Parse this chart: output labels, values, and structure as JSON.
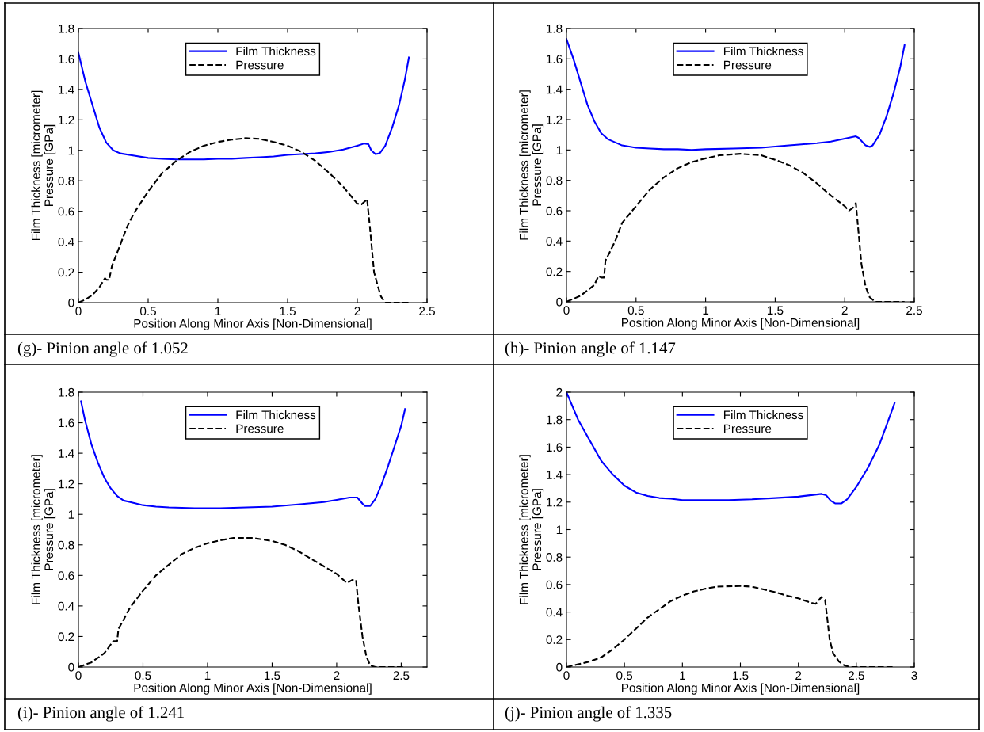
{
  "chart_data": [
    {
      "type": "line",
      "xlabel": "Position Along Minor Axis [Non-Dimensional]",
      "ylabel": "Film Thickness [micrometer]\nPressure [GPa]",
      "xlim": [
        0,
        2.5
      ],
      "ylim": [
        0,
        1.8
      ],
      "xticks": [
        0,
        0.5,
        1,
        1.5,
        2,
        2.5
      ],
      "yticks": [
        0,
        0.2,
        0.4,
        0.6,
        0.8,
        1,
        1.2,
        1.4,
        1.6,
        1.8
      ],
      "legend": "top",
      "annotations": [
        "(g)- Pinion angle of 1.052"
      ],
      "series": [
        {
          "name": "Film Thickness",
          "color": "#0000ff",
          "line_style": "solid",
          "x": [
            0,
            0.05,
            0.1,
            0.15,
            0.2,
            0.25,
            0.3,
            0.4,
            0.5,
            0.6,
            0.7,
            0.8,
            0.9,
            1.0,
            1.1,
            1.2,
            1.3,
            1.4,
            1.5,
            1.6,
            1.7,
            1.8,
            1.9,
            2.0,
            2.05,
            2.08,
            2.1,
            2.13,
            2.16,
            2.2,
            2.25,
            2.3,
            2.34,
            2.37
          ],
          "values": [
            1.64,
            1.45,
            1.3,
            1.15,
            1.05,
            1.0,
            0.98,
            0.965,
            0.95,
            0.945,
            0.94,
            0.94,
            0.94,
            0.945,
            0.945,
            0.95,
            0.955,
            0.96,
            0.97,
            0.975,
            0.98,
            0.99,
            1.005,
            1.03,
            1.045,
            1.04,
            1.0,
            0.975,
            0.98,
            1.03,
            1.15,
            1.3,
            1.46,
            1.61
          ]
        },
        {
          "name": "Pressure",
          "color": "#000000",
          "line_style": "dashed",
          "x": [
            0,
            0.05,
            0.1,
            0.15,
            0.19,
            0.2,
            0.22,
            0.24,
            0.3,
            0.35,
            0.4,
            0.5,
            0.6,
            0.7,
            0.8,
            0.9,
            1.0,
            1.1,
            1.2,
            1.3,
            1.4,
            1.5,
            1.6,
            1.7,
            1.8,
            1.9,
            2.0,
            2.03,
            2.06,
            2.07,
            2.09,
            2.1,
            2.12,
            2.15,
            2.17,
            2.2,
            2.37
          ],
          "values": [
            0,
            0.02,
            0.05,
            0.1,
            0.16,
            0.15,
            0.15,
            0.24,
            0.38,
            0.5,
            0.59,
            0.73,
            0.85,
            0.93,
            0.99,
            1.03,
            1.055,
            1.07,
            1.08,
            1.075,
            1.055,
            1.03,
            0.99,
            0.93,
            0.85,
            0.76,
            0.65,
            0.645,
            0.67,
            0.68,
            0.5,
            0.4,
            0.2,
            0.1,
            0.04,
            0,
            0
          ]
        }
      ]
    },
    {
      "type": "line",
      "xlabel": "Position Along Minor Axis [Non-Dimensional]",
      "ylabel": "Film Thickness [micrometer]\nPressure [GPa]",
      "xlim": [
        0,
        2.5
      ],
      "ylim": [
        0,
        1.8
      ],
      "xticks": [
        0,
        0.5,
        1,
        1.5,
        2,
        2.5
      ],
      "yticks": [
        0,
        0.2,
        0.4,
        0.6,
        0.8,
        1,
        1.2,
        1.4,
        1.6,
        1.8
      ],
      "legend": "top",
      "annotations": [
        "(h)- Pinion angle of 1.147"
      ],
      "series": [
        {
          "name": "Film Thickness",
          "color": "#0000ff",
          "line_style": "solid",
          "x": [
            0,
            0.05,
            0.1,
            0.15,
            0.2,
            0.25,
            0.3,
            0.4,
            0.5,
            0.6,
            0.7,
            0.8,
            0.9,
            1.0,
            1.2,
            1.4,
            1.6,
            1.8,
            1.9,
            2.0,
            2.08,
            2.1,
            2.15,
            2.18,
            2.2,
            2.25,
            2.3,
            2.35,
            2.4,
            2.43
          ],
          "values": [
            1.73,
            1.6,
            1.45,
            1.3,
            1.19,
            1.11,
            1.07,
            1.03,
            1.015,
            1.01,
            1.005,
            1.005,
            1.0,
            1.005,
            1.01,
            1.015,
            1.03,
            1.045,
            1.055,
            1.075,
            1.09,
            1.08,
            1.03,
            1.02,
            1.03,
            1.1,
            1.22,
            1.37,
            1.55,
            1.69
          ]
        },
        {
          "name": "Pressure",
          "color": "#000000",
          "line_style": "dashed",
          "x": [
            0,
            0.1,
            0.2,
            0.23,
            0.25,
            0.27,
            0.28,
            0.35,
            0.4,
            0.5,
            0.6,
            0.7,
            0.8,
            0.9,
            1.0,
            1.1,
            1.25,
            1.4,
            1.5,
            1.6,
            1.7,
            1.8,
            1.9,
            2.0,
            2.03,
            2.06,
            2.08,
            2.1,
            2.12,
            2.15,
            2.18,
            2.22,
            2.43
          ],
          "values": [
            0,
            0.04,
            0.11,
            0.17,
            0.16,
            0.16,
            0.27,
            0.4,
            0.52,
            0.63,
            0.74,
            0.82,
            0.88,
            0.92,
            0.945,
            0.965,
            0.975,
            0.965,
            0.935,
            0.9,
            0.85,
            0.78,
            0.7,
            0.63,
            0.6,
            0.62,
            0.65,
            0.45,
            0.25,
            0.1,
            0.03,
            0,
            0
          ]
        }
      ]
    },
    {
      "type": "line",
      "xlabel": "Position Along Minor Axis [Non-Dimensional]",
      "ylabel": "Film Thickness [micrometer]\nPressure [GPa]",
      "xlim": [
        0,
        2.7
      ],
      "ylim": [
        0,
        1.8
      ],
      "xticks": [
        0,
        0.5,
        1,
        1.5,
        2,
        2.5
      ],
      "yticks": [
        0,
        0.2,
        0.4,
        0.6,
        0.8,
        1,
        1.2,
        1.4,
        1.6,
        1.8
      ],
      "legend": "top",
      "annotations": [
        "(i)- Pinion angle of 1.241"
      ],
      "series": [
        {
          "name": "Film Thickness",
          "color": "#0000ff",
          "line_style": "solid",
          "x": [
            0.02,
            0.05,
            0.1,
            0.15,
            0.2,
            0.25,
            0.3,
            0.35,
            0.4,
            0.5,
            0.6,
            0.7,
            0.9,
            1.1,
            1.3,
            1.5,
            1.7,
            1.9,
            2.0,
            2.1,
            2.16,
            2.2,
            2.22,
            2.26,
            2.3,
            2.35,
            2.4,
            2.45,
            2.5,
            2.53
          ],
          "values": [
            1.74,
            1.62,
            1.46,
            1.34,
            1.24,
            1.17,
            1.12,
            1.09,
            1.08,
            1.06,
            1.05,
            1.045,
            1.04,
            1.04,
            1.045,
            1.05,
            1.065,
            1.08,
            1.095,
            1.11,
            1.11,
            1.07,
            1.055,
            1.055,
            1.1,
            1.2,
            1.32,
            1.45,
            1.58,
            1.69
          ]
        },
        {
          "name": "Pressure",
          "color": "#000000",
          "line_style": "dashed",
          "x": [
            0,
            0.1,
            0.2,
            0.27,
            0.3,
            0.31,
            0.35,
            0.4,
            0.5,
            0.6,
            0.7,
            0.8,
            0.9,
            1.0,
            1.1,
            1.2,
            1.35,
            1.5,
            1.6,
            1.7,
            1.8,
            1.9,
            2.0,
            2.08,
            2.12,
            2.15,
            2.17,
            2.2,
            2.23,
            2.26,
            2.3,
            2.53
          ],
          "values": [
            0,
            0.03,
            0.09,
            0.17,
            0.17,
            0.25,
            0.31,
            0.39,
            0.5,
            0.6,
            0.67,
            0.74,
            0.78,
            0.81,
            0.83,
            0.845,
            0.845,
            0.825,
            0.8,
            0.76,
            0.71,
            0.66,
            0.61,
            0.55,
            0.57,
            0.57,
            0.4,
            0.2,
            0.07,
            0.01,
            0,
            0
          ]
        }
      ]
    },
    {
      "type": "line",
      "xlabel": "Position Along Minor Axis [Non-Dimensional]",
      "ylabel": "Film Thickness [micrometer]\nPressure [GPa]",
      "xlim": [
        0,
        3
      ],
      "ylim": [
        0,
        2
      ],
      "xticks": [
        0,
        0.5,
        1,
        1.5,
        2,
        2.5,
        3
      ],
      "yticks": [
        0,
        0.2,
        0.4,
        0.6,
        0.8,
        1,
        1.2,
        1.4,
        1.6,
        1.8,
        2
      ],
      "legend": "top",
      "annotations": [
        "(j)- Pinion angle of 1.335"
      ],
      "series": [
        {
          "name": "Film Thickness",
          "color": "#0000ff",
          "line_style": "solid",
          "x": [
            0,
            0.1,
            0.2,
            0.3,
            0.4,
            0.5,
            0.6,
            0.7,
            0.8,
            0.9,
            1.0,
            1.2,
            1.4,
            1.6,
            1.8,
            2.0,
            2.1,
            2.2,
            2.24,
            2.28,
            2.32,
            2.37,
            2.42,
            2.5,
            2.6,
            2.7,
            2.8,
            2.83
          ],
          "values": [
            2.0,
            1.8,
            1.65,
            1.5,
            1.4,
            1.32,
            1.27,
            1.245,
            1.23,
            1.225,
            1.215,
            1.215,
            1.215,
            1.22,
            1.23,
            1.24,
            1.25,
            1.26,
            1.25,
            1.21,
            1.19,
            1.19,
            1.22,
            1.31,
            1.45,
            1.62,
            1.85,
            1.92
          ]
        },
        {
          "name": "Pressure",
          "color": "#000000",
          "line_style": "dashed",
          "x": [
            0,
            0.1,
            0.2,
            0.3,
            0.4,
            0.5,
            0.6,
            0.7,
            0.8,
            0.9,
            1.0,
            1.1,
            1.2,
            1.3,
            1.5,
            1.6,
            1.7,
            1.8,
            1.9,
            2.0,
            2.1,
            2.15,
            2.18,
            2.2,
            2.23,
            2.25,
            2.27,
            2.3,
            2.35,
            2.4,
            2.45,
            2.83
          ],
          "values": [
            0,
            0.02,
            0.04,
            0.07,
            0.13,
            0.2,
            0.28,
            0.36,
            0.42,
            0.48,
            0.52,
            0.55,
            0.57,
            0.585,
            0.59,
            0.585,
            0.565,
            0.545,
            0.52,
            0.5,
            0.47,
            0.46,
            0.49,
            0.51,
            0.49,
            0.35,
            0.2,
            0.1,
            0.04,
            0.01,
            0,
            0
          ]
        }
      ]
    }
  ]
}
